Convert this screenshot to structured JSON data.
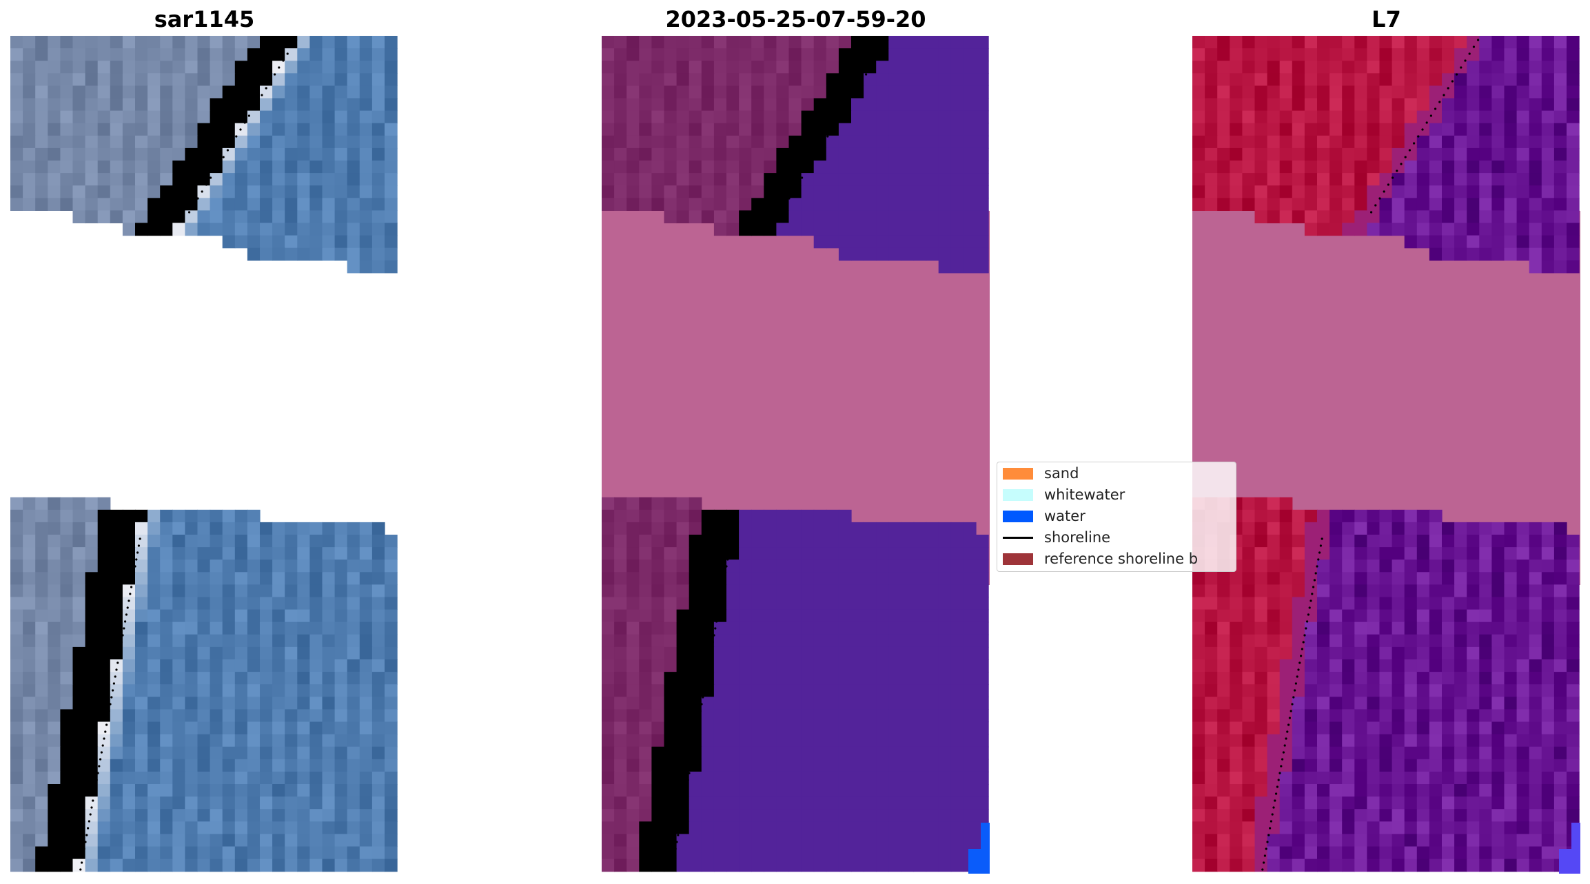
{
  "panels": {
    "rgb": {
      "title": "sar1145"
    },
    "classification": {
      "title": "2023-05-25-07-59-20"
    },
    "index": {
      "title": "L7"
    }
  },
  "legend": {
    "items": [
      {
        "label": "sand",
        "color": "#ff8c3a",
        "kind": "patch"
      },
      {
        "label": "whitewater",
        "color": "#c6fdfd",
        "kind": "patch"
      },
      {
        "label": "water",
        "color": "#0059ff",
        "kind": "patch"
      },
      {
        "label": "shoreline",
        "color": "#000000",
        "kind": "line"
      },
      {
        "label": "reference shoreline b",
        "color": "#9e3439",
        "kind": "patch"
      }
    ]
  },
  "colors": {
    "nodata_mask": "#bc6493",
    "rgb_water": "#5a87ba",
    "rgb_land": "#8092b2",
    "rgb_surf": "#f1f1f6",
    "class_water": "#53239a",
    "class_water_bright": "#0a5cfa",
    "class_land": "#82306e",
    "class_beach": "#c2608f",
    "index_red": "#c21f4c",
    "index_purple": "#7521a0",
    "index_bright": "#ff5a5a",
    "shoreline": "#000000"
  }
}
